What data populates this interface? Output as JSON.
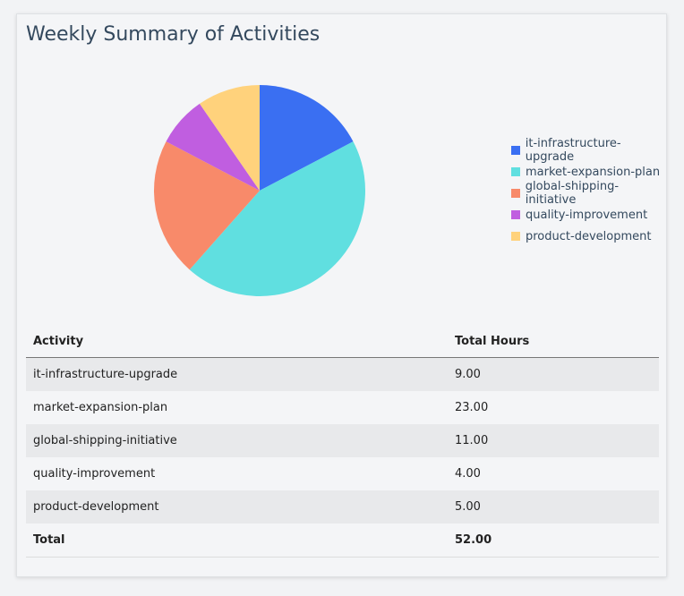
{
  "title": "Weekly Summary of Activities",
  "chart_data": {
    "type": "pie",
    "categories": [
      "it-infrastructure-upgrade",
      "market-expansion-plan",
      "global-shipping-initiative",
      "quality-improvement",
      "product-development"
    ],
    "values": [
      9,
      23,
      11,
      4,
      5
    ],
    "colors": [
      "#3a6ff2",
      "#60dfe0",
      "#f88a6a",
      "#c05ee0",
      "#ffd27c"
    ],
    "legend": "right"
  },
  "table": {
    "headers": [
      "Activity",
      "Total Hours"
    ],
    "rows": [
      [
        "it-infrastructure-upgrade",
        "9.00"
      ],
      [
        "market-expansion-plan",
        "23.00"
      ],
      [
        "global-shipping-initiative",
        "11.00"
      ],
      [
        "quality-improvement",
        "4.00"
      ],
      [
        "product-development",
        "5.00"
      ]
    ],
    "total": [
      "Total",
      "52.00"
    ]
  }
}
